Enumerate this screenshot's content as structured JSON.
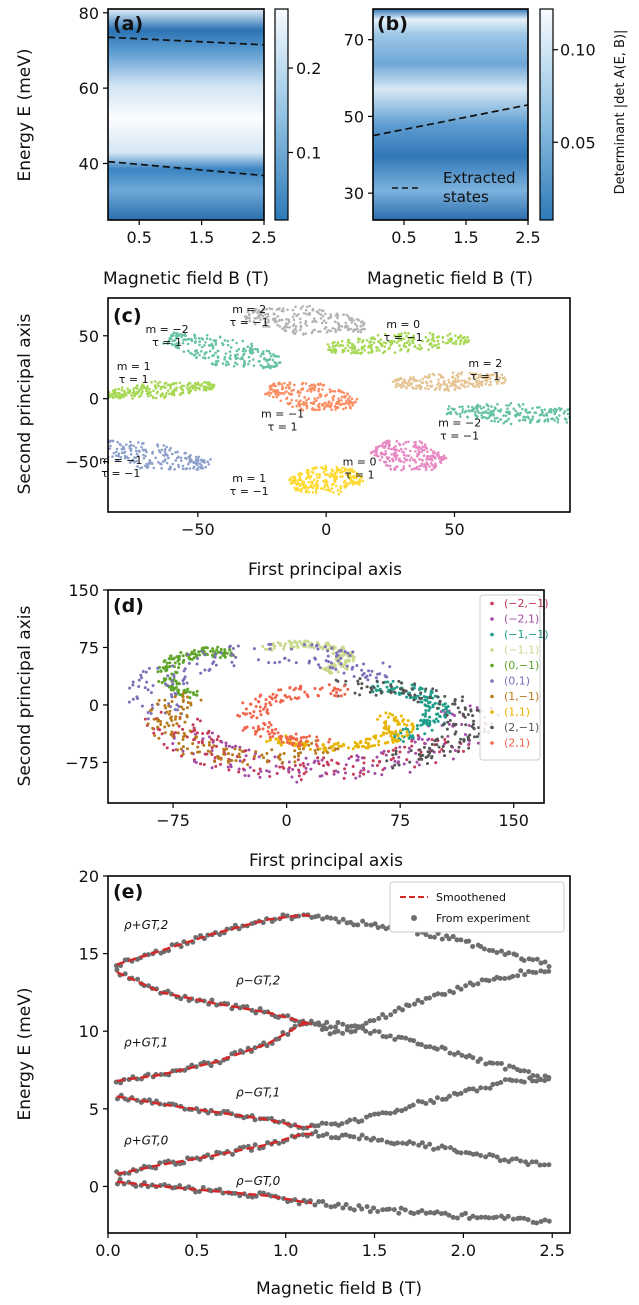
{
  "chart_data": [
    {
      "panel": "(a)",
      "type": "heatmap",
      "xlabel": "Magnetic field B (T)",
      "ylabel": "Energy E (meV)",
      "xlim": [
        0,
        2.5
      ],
      "ylim": [
        25,
        81
      ],
      "x_ticks": [
        0.5,
        1.5,
        2.5
      ],
      "y_ticks": [
        40,
        60,
        80
      ],
      "colorbar_ticks": [
        0.1,
        0.2
      ],
      "colorbar_range": [
        0.02,
        0.27
      ],
      "dashed_lines": [
        {
          "x": [
            0,
            2.5
          ],
          "y": [
            73.5,
            71.5
          ]
        },
        {
          "x": [
            0,
            2.5
          ],
          "y": [
            40.5,
            36.8
          ]
        }
      ]
    },
    {
      "panel": "(b)",
      "type": "heatmap",
      "xlabel": "Magnetic field B (T)",
      "ylim": [
        23,
        78
      ],
      "xlim": [
        0,
        2.5
      ],
      "x_ticks": [
        0.5,
        1.5,
        2.5
      ],
      "y_ticks": [
        30,
        50,
        70
      ],
      "colorbar_ticks": [
        0.05,
        0.1
      ],
      "colorbar_range": [
        0.008,
        0.122
      ],
      "colorbar_ticklabels": [
        "0.05",
        "0.10"
      ],
      "colorbar_label": "Determinant |det A(E, B)|",
      "legend": "Extracted states",
      "dashed_lines": [
        {
          "x": [
            0,
            2.5
          ],
          "y": [
            45,
            53
          ]
        }
      ]
    },
    {
      "panel": "(c)",
      "type": "scatter",
      "xlabel": "First principal axis",
      "ylabel": "Second principal axis",
      "xlim": [
        -85,
        95
      ],
      "ylim": [
        -90,
        80
      ],
      "x_ticks": [
        -50,
        0,
        50
      ],
      "y_ticks": [
        -50,
        0,
        50
      ],
      "clusters": [
        {
          "m": "2",
          "tau": "−1",
          "cx": -8,
          "cy": 62,
          "color": "#b3b3b3"
        },
        {
          "m": "−2",
          "tau": "1",
          "cx": -40,
          "cy": 38,
          "color": "#66c2a5"
        },
        {
          "m": "0",
          "tau": "−1",
          "cx": 28,
          "cy": 44,
          "color": "#a6d854"
        },
        {
          "m": "1",
          "tau": "1",
          "cx": -65,
          "cy": 7,
          "color": "#a6d854"
        },
        {
          "m": "−1",
          "tau": "1",
          "cx": -6,
          "cy": 2,
          "color": "#fc8d62"
        },
        {
          "m": "2",
          "tau": "1",
          "cx": 48,
          "cy": 14,
          "color": "#e5c494"
        },
        {
          "m": "−2",
          "tau": "−1",
          "cx": 75,
          "cy": -12,
          "color": "#66c2a5"
        },
        {
          "m": "−1",
          "tau": "−1",
          "cx": -70,
          "cy": -45,
          "color": "#8da0cb"
        },
        {
          "m": "0",
          "tau": "1",
          "cx": 32,
          "cy": -45,
          "color": "#e78ac3"
        },
        {
          "m": "1",
          "tau": "−1",
          "cx": 0,
          "cy": -65,
          "color": "#ffd92f"
        }
      ]
    },
    {
      "panel": "(d)",
      "type": "scatter",
      "xlabel": "First principal axis",
      "ylabel": "Second principal axis",
      "xlim": [
        -118,
        170
      ],
      "ylim": [
        -128,
        150
      ],
      "x_ticks": [
        -75,
        0,
        75,
        150
      ],
      "y_ticks": [
        -75,
        0,
        75,
        150
      ],
      "legend_entries": [
        "(−2,−1)",
        "(−2,1)",
        "(−1,−1)",
        "(−1,1)",
        "(0,−1)",
        "(0,1)",
        "(1,−1)",
        "(1,1)",
        "(2,−1)",
        "(2,1)"
      ],
      "series_colors": [
        "#c53b5a",
        "#a24ca5",
        "#1f9e89",
        "#c9d98e",
        "#5fa52a",
        "#7b6fb8",
        "#b97a1b",
        "#e8b500",
        "#545454",
        "#f0654c"
      ]
    },
    {
      "panel": "(e)",
      "type": "line",
      "xlabel": "Magnetic field B (T)",
      "ylabel": "Energy E (meV)",
      "xlim": [
        0,
        2.6
      ],
      "ylim": [
        -3,
        20
      ],
      "x_ticks": [
        0.0,
        0.5,
        1.0,
        1.5,
        2.0,
        2.5
      ],
      "x_ticklabels": [
        "0.0",
        "0.5",
        "1.0",
        "1.5",
        "2.0",
        "2.5"
      ],
      "y_ticks": [
        0,
        5,
        10,
        15,
        20
      ],
      "legend": [
        "Smoothened",
        "From experiment"
      ],
      "series": [
        {
          "label": "ρ+GT,2",
          "x": [
            0.05,
            0.3,
            0.6,
            0.9,
            1.1,
            1.4,
            1.7,
            2.0,
            2.25,
            2.48
          ],
          "y": [
            14.3,
            15.2,
            16.3,
            17.2,
            17.5,
            17.0,
            16.5,
            15.8,
            15.0,
            14.3
          ]
        },
        {
          "label": "ρ−GT,2",
          "x": [
            0.05,
            0.3,
            0.6,
            0.9,
            1.1,
            1.3,
            1.6,
            1.9,
            2.2,
            2.48
          ],
          "y": [
            13.8,
            12.5,
            11.8,
            11.2,
            10.6,
            9.8,
            11.2,
            12.5,
            13.5,
            14.0
          ]
        },
        {
          "label": "ρ+GT,1",
          "x": [
            0.05,
            0.3,
            0.6,
            0.9,
            1.1,
            1.3,
            1.6,
            1.9,
            2.2,
            2.48
          ],
          "y": [
            6.8,
            7.2,
            8.0,
            9.2,
            10.5,
            10.4,
            9.6,
            8.8,
            7.8,
            6.9
          ]
        },
        {
          "label": "ρ−GT,1",
          "x": [
            0.05,
            0.3,
            0.6,
            0.9,
            1.1,
            1.4,
            1.7,
            2.0,
            2.25,
            2.48
          ],
          "y": [
            5.8,
            5.3,
            4.8,
            4.3,
            3.8,
            4.2,
            5.2,
            6.0,
            6.8,
            7.0
          ]
        },
        {
          "label": "ρ+GT,0",
          "x": [
            0.05,
            0.3,
            0.6,
            0.9,
            1.1,
            1.4,
            1.7,
            2.0,
            2.25,
            2.48
          ],
          "y": [
            0.8,
            1.4,
            2.0,
            2.7,
            3.4,
            3.2,
            2.8,
            2.2,
            1.7,
            1.4
          ]
        },
        {
          "label": "ρ−GT,0",
          "x": [
            0.05,
            0.3,
            0.6,
            0.9,
            1.1,
            1.4,
            1.7,
            2.0,
            2.25,
            2.48
          ],
          "y": [
            0.3,
            0.0,
            -0.3,
            -0.6,
            -1.0,
            -1.4,
            -1.6,
            -1.9,
            -2.1,
            -2.3
          ]
        }
      ],
      "smoothened_x_range": [
        0.05,
        1.15
      ],
      "line_color": "#d62728",
      "marker_color": "#6e6e6e"
    }
  ]
}
